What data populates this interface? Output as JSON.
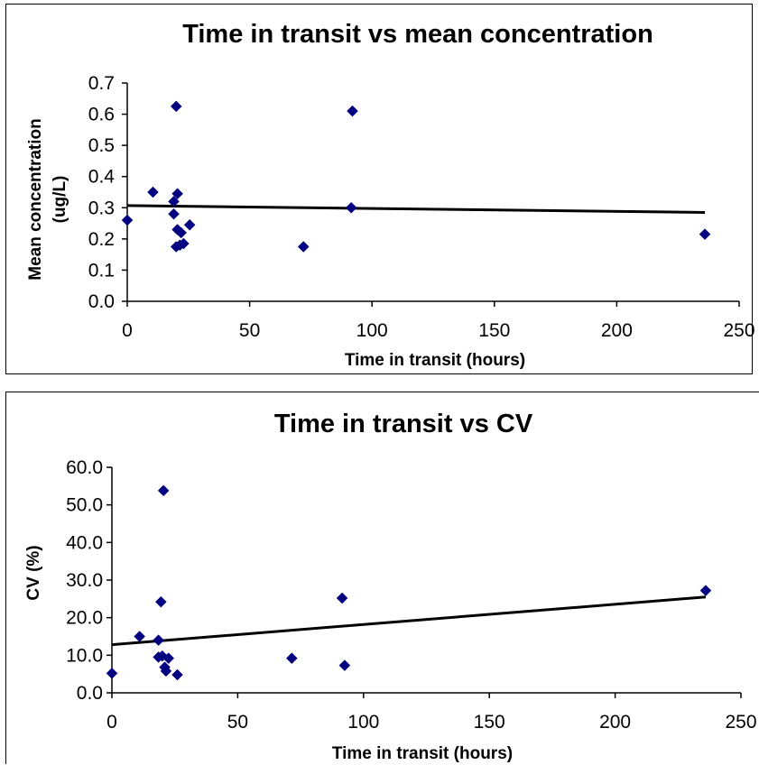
{
  "chart_data": [
    {
      "type": "scatter",
      "title": "Time in transit vs mean concentration",
      "xlabel": "Time in transit (hours)",
      "ylabel": "Mean concentration (ug/L)",
      "ylabel_lines": [
        "Mean concentration",
        "(ug/L)"
      ],
      "xlim": [
        0,
        250
      ],
      "ylim": [
        0,
        0.7
      ],
      "x_ticks": [
        "0",
        "50",
        "100",
        "150",
        "200",
        "250"
      ],
      "y_ticks": [
        "0.0",
        "0.1",
        "0.2",
        "0.3",
        "0.4",
        "0.5",
        "0.6",
        "0.7"
      ],
      "grid": false,
      "legend": "none",
      "marker": "diamond",
      "marker_color": "#000080",
      "trendline": {
        "type": "linear",
        "x": [
          0,
          236
        ],
        "y": [
          0.307,
          0.285
        ]
      },
      "points": [
        {
          "x": 0,
          "y": 0.26
        },
        {
          "x": 10.5,
          "y": 0.35
        },
        {
          "x": 19,
          "y": 0.32
        },
        {
          "x": 19,
          "y": 0.28
        },
        {
          "x": 20,
          "y": 0.625
        },
        {
          "x": 20.5,
          "y": 0.345
        },
        {
          "x": 20,
          "y": 0.175
        },
        {
          "x": 20.5,
          "y": 0.23
        },
        {
          "x": 21.5,
          "y": 0.18
        },
        {
          "x": 22,
          "y": 0.22
        },
        {
          "x": 23,
          "y": 0.185
        },
        {
          "x": 25.5,
          "y": 0.245
        },
        {
          "x": 72,
          "y": 0.175
        },
        {
          "x": 91.5,
          "y": 0.3
        },
        {
          "x": 92,
          "y": 0.61
        },
        {
          "x": 236,
          "y": 0.215
        }
      ]
    },
    {
      "type": "scatter",
      "title": "Time in transit vs CV",
      "xlabel": "Time in transit (hours)",
      "ylabel": "CV (%)",
      "ylabel_lines": [
        "CV (%)"
      ],
      "xlim": [
        0,
        250
      ],
      "ylim": [
        0,
        60
      ],
      "x_ticks": [
        "0",
        "50",
        "100",
        "150",
        "200",
        "250"
      ],
      "y_ticks": [
        "0.0",
        "10.0",
        "20.0",
        "30.0",
        "40.0",
        "50.0",
        "60.0"
      ],
      "grid": false,
      "legend": "none",
      "marker": "diamond",
      "marker_color": "#000080",
      "trendline": {
        "type": "linear",
        "x": [
          0,
          236
        ],
        "y": [
          12.8,
          25.5
        ]
      },
      "points": [
        {
          "x": 0,
          "y": 5.2
        },
        {
          "x": 11,
          "y": 15.0
        },
        {
          "x": 18.5,
          "y": 14.0
        },
        {
          "x": 18.5,
          "y": 9.5
        },
        {
          "x": 19.5,
          "y": 24.2
        },
        {
          "x": 20,
          "y": 9.8
        },
        {
          "x": 20.5,
          "y": 53.8
        },
        {
          "x": 21,
          "y": 6.8
        },
        {
          "x": 21.5,
          "y": 5.8
        },
        {
          "x": 22.5,
          "y": 9.2
        },
        {
          "x": 26,
          "y": 4.8
        },
        {
          "x": 71.5,
          "y": 9.2
        },
        {
          "x": 91.5,
          "y": 25.2
        },
        {
          "x": 92.5,
          "y": 7.3
        },
        {
          "x": 236,
          "y": 27.2
        }
      ]
    }
  ]
}
